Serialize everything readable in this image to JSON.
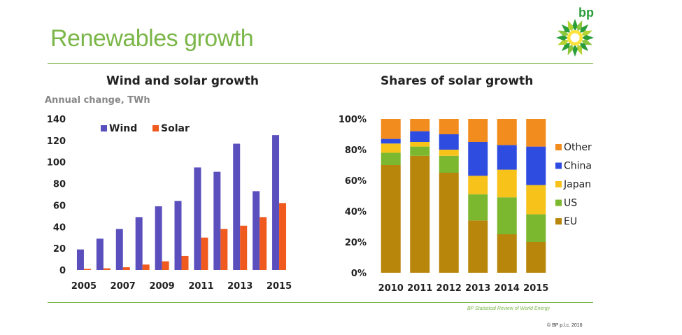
{
  "slide": {
    "title": "Renewables growth",
    "logo_text": "bp",
    "source": "BP Statistical Review of World Energy",
    "copyright": "© BP p.l.c. 2016"
  },
  "colors": {
    "accent": "#7ab648",
    "wind": "#5b4fbe",
    "solar": "#f05a1e"
  },
  "chart_data": [
    {
      "type": "bar",
      "title": "Wind and solar growth",
      "ylabel": "Annual change, TWh",
      "ylim": [
        0,
        140
      ],
      "yticks": [
        0,
        20,
        40,
        60,
        80,
        100,
        120,
        140
      ],
      "categories": [
        "2005",
        "2006",
        "2007",
        "2008",
        "2009",
        "2010",
        "2011",
        "2012",
        "2013",
        "2014",
        "2015"
      ],
      "xtick_labels": [
        "2005",
        "2007",
        "2009",
        "2011",
        "2013",
        "2015"
      ],
      "legend_position": "top-left",
      "grid": false,
      "series": [
        {
          "name": "Wind",
          "color": "#5b4fbe",
          "values": [
            19,
            29,
            38,
            49,
            59,
            64,
            95,
            91,
            117,
            73,
            125
          ]
        },
        {
          "name": "Solar",
          "color": "#f05a1e",
          "values": [
            1,
            1.5,
            2.5,
            5,
            8,
            13,
            30,
            38,
            41,
            49,
            62
          ]
        }
      ]
    },
    {
      "type": "bar",
      "stacked": true,
      "title": "Shares of solar growth",
      "ylim": [
        0,
        100
      ],
      "yticks": [
        "0%",
        "20%",
        "40%",
        "60%",
        "80%",
        "100%"
      ],
      "categories": [
        "2010",
        "2011",
        "2012",
        "2013",
        "2014",
        "2015"
      ],
      "legend_position": "right",
      "grid": false,
      "series": [
        {
          "name": "EU",
          "color": "#b8860b",
          "values": [
            70,
            76,
            65,
            34,
            25,
            20
          ]
        },
        {
          "name": "US",
          "color": "#7cb82f",
          "values": [
            8,
            6,
            11,
            17,
            24,
            18
          ]
        },
        {
          "name": "Japan",
          "color": "#f7c21a",
          "values": [
            6,
            3,
            4,
            12,
            18,
            19
          ]
        },
        {
          "name": "China",
          "color": "#2e4de0",
          "values": [
            3,
            7,
            10,
            22,
            16,
            25
          ]
        },
        {
          "name": "Other",
          "color": "#f28c1e",
          "values": [
            13,
            8,
            10,
            15,
            17,
            18
          ]
        }
      ]
    }
  ]
}
